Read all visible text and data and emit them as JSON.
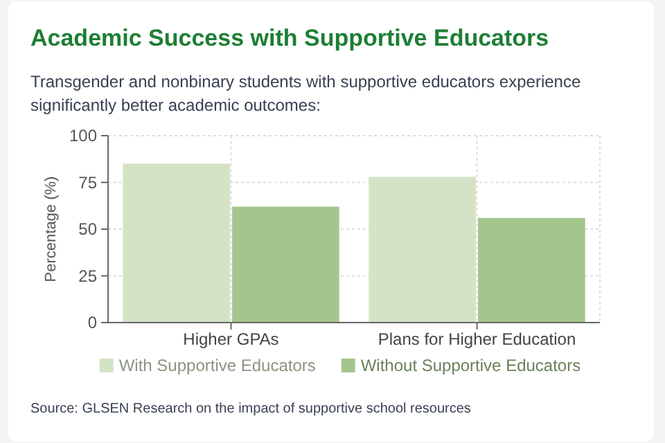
{
  "chart_data": {
    "type": "bar",
    "title": "Academic Success with Supportive Educators",
    "subtitle": "Transgender and nonbinary students with supportive educators experience significantly better academic outcomes:",
    "ylabel": "Percentage (%)",
    "categories": [
      "Higher GPAs",
      "Plans for Higher Education"
    ],
    "series": [
      {
        "name": "With Supportive Educators",
        "color": "#d4e3c6",
        "values": [
          85,
          78
        ]
      },
      {
        "name": "Without Supportive Educators",
        "color": "#a4c68c",
        "values": [
          62,
          56
        ]
      }
    ],
    "ylim": [
      0,
      100
    ],
    "yticks": [
      0,
      25,
      50,
      75,
      100
    ],
    "grid": true,
    "legend": "bottom",
    "annotations": [
      "Source: GLSEN Research on the impact of supportive school resources"
    ]
  }
}
